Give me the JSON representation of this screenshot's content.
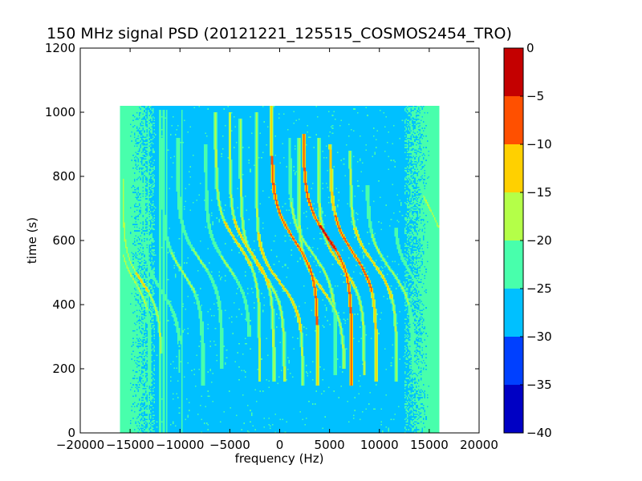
{
  "chart_data": {
    "type": "heatmap",
    "title": "150 MHz signal PSD (20121221_125515_COSMOS2454_TRO)",
    "xlabel": "frequency (Hz)",
    "ylabel": "time (s)",
    "xlim": [
      -20000,
      20000
    ],
    "ylim": [
      0,
      1200
    ],
    "x_ticks": [
      -20000,
      -15000,
      -10000,
      -5000,
      0,
      5000,
      10000,
      15000,
      20000
    ],
    "x_tick_labels": [
      "−20000",
      "−15000",
      "−10000",
      "−5000",
      "0",
      "5000",
      "10000",
      "15000",
      "20000"
    ],
    "y_ticks": [
      0,
      200,
      400,
      600,
      800,
      1000,
      1200
    ],
    "y_tick_labels": [
      "0",
      "200",
      "400",
      "600",
      "800",
      "1000",
      "1200"
    ],
    "data_extent": {
      "x": [
        -16000,
        16000
      ],
      "y": [
        0,
        1020
      ]
    },
    "background_level": -27.5,
    "edge_noise_level": -22.5,
    "grid": false,
    "colorbar": {
      "levels": [
        -40,
        -35,
        -30,
        -25,
        -20,
        -15,
        -10,
        -5,
        0
      ],
      "tick_labels": [
        "−40",
        "−35",
        "−30",
        "−25",
        "−20",
        "−15",
        "−10",
        "−5",
        "0"
      ],
      "colors": [
        "#0000c4",
        "#0040ff",
        "#00c0ff",
        "#48ffac",
        "#b4ff48",
        "#ffd000",
        "#ff5000",
        "#c40000"
      ]
    },
    "vertical_lines_hz": [
      -13200,
      -12000,
      -11600,
      -11300,
      -9800
    ],
    "traces": [
      {
        "center_hz": -14500,
        "t0": 470,
        "freq_span_hz": 1500,
        "tau_s": 80,
        "t_range": [
          150,
          600
        ],
        "peak": -17
      },
      {
        "center_hz": -13800,
        "t0": 470,
        "freq_span_hz": 1900,
        "tau_s": 90,
        "t_range": [
          250,
          790
        ],
        "peak": -14
      },
      {
        "center_hz": -11800,
        "t0": 440,
        "freq_span_hz": 1900,
        "tau_s": 95,
        "t_range": [
          190,
          800
        ],
        "peak": -21
      },
      {
        "center_hz": -9700,
        "t0": 500,
        "freq_span_hz": 2000,
        "tau_s": 95,
        "t_range": [
          150,
          920
        ],
        "peak": -18
      },
      {
        "center_hz": -8000,
        "t0": 540,
        "freq_span_hz": 2200,
        "tau_s": 100,
        "t_range": [
          200,
          920
        ],
        "peak": -19
      },
      {
        "center_hz": -5200,
        "t0": 520,
        "freq_span_hz": 2200,
        "tau_s": 100,
        "t_range": [
          300,
          900
        ],
        "peak": -19
      },
      {
        "center_hz": -4200,
        "t0": 590,
        "freq_span_hz": 2200,
        "tau_s": 100,
        "t_range": [
          160,
          1000
        ],
        "peak": -13
      },
      {
        "center_hz": -2800,
        "t0": 560,
        "freq_span_hz": 2200,
        "tau_s": 100,
        "t_range": [
          160,
          1000
        ],
        "peak": -12
      },
      {
        "center_hz": -1700,
        "t0": 500,
        "freq_span_hz": 2200,
        "tau_s": 100,
        "t_range": [
          160,
          980
        ],
        "peak": -14
      },
      {
        "center_hz": 0,
        "t0": 470,
        "freq_span_hz": 2300,
        "tau_s": 95,
        "t_range": [
          150,
          1000
        ],
        "peak": -11
      },
      {
        "center_hz": 1500,
        "t0": 600,
        "freq_span_hz": 2300,
        "tau_s": 110,
        "t_range": [
          150,
          1020
        ],
        "peak": -5
      },
      {
        "center_hz": 3300,
        "t0": 560,
        "freq_span_hz": 2300,
        "tau_s": 100,
        "t_range": [
          180,
          920
        ],
        "peak": -16
      },
      {
        "center_hz": 4200,
        "t0": 450,
        "freq_span_hz": 2300,
        "tau_s": 100,
        "t_range": [
          200,
          920
        ],
        "peak": -14
      },
      {
        "center_hz": 4800,
        "t0": 610,
        "freq_span_hz": 2400,
        "tau_s": 110,
        "t_range": [
          150,
          930
        ],
        "peak": -4
      },
      {
        "center_hz": 6200,
        "t0": 520,
        "freq_span_hz": 2300,
        "tau_s": 100,
        "t_range": [
          180,
          920
        ],
        "peak": -13
      },
      {
        "center_hz": 7400,
        "t0": 560,
        "freq_span_hz": 2300,
        "tau_s": 110,
        "t_range": [
          160,
          900
        ],
        "peak": -7
      },
      {
        "center_hz": 9400,
        "t0": 530,
        "freq_span_hz": 2300,
        "tau_s": 100,
        "t_range": [
          160,
          880
        ],
        "peak": -12
      },
      {
        "center_hz": 11100,
        "t0": 510,
        "freq_span_hz": 2300,
        "tau_s": 100,
        "t_range": [
          200,
          770
        ],
        "peak": -17
      },
      {
        "center_hz": 13500,
        "t0": 480,
        "freq_span_hz": 2000,
        "tau_s": 95,
        "t_range": [
          280,
          640
        ],
        "peak": -20
      },
      {
        "center_hz": 15200,
        "t0": 690,
        "freq_span_hz": 1200,
        "tau_s": 70,
        "t_range": [
          580,
          780
        ],
        "peak": -18
      }
    ]
  }
}
